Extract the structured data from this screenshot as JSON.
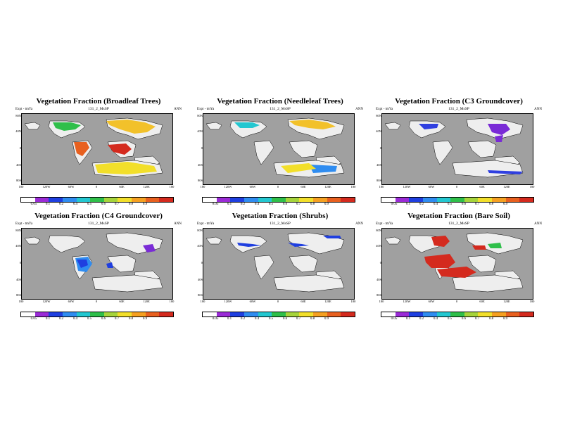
{
  "panels": [
    {
      "title": "Vegetation Fraction (Broadleaf Trees)",
      "expt": "Expt - tmYa",
      "run": "131_2_MsSP",
      "season": "ANN",
      "ylabels": [
        "80N",
        "40N",
        "0",
        "40S",
        "80S"
      ],
      "xlabels": [
        "180",
        "120W",
        "60W",
        "0",
        "60E",
        "120E",
        "180"
      ],
      "ticks": [
        "0.05",
        "0.1",
        "0.2",
        "0.4",
        "0.5",
        "0.6",
        "0.7",
        "0.8",
        "0.9"
      ]
    },
    {
      "title": "Vegetation Fraction (Needleleaf Trees)",
      "expt": "Expt - tmYa",
      "run": "131_2_MsSP",
      "season": "ANN",
      "ylabels": [
        "80N",
        "40N",
        "0",
        "40S",
        "80S"
      ],
      "xlabels": [
        "180",
        "120W",
        "60W",
        "0",
        "60E",
        "120E",
        "180"
      ],
      "ticks": [
        "0.05",
        "0.1",
        "0.2",
        "0.4",
        "0.5",
        "0.6",
        "0.7",
        "0.8",
        "0.9"
      ]
    },
    {
      "title": "Vegetation Fraction (C3 Groundcover)",
      "expt": "Expt - tmYa",
      "run": "131_2_MsSP",
      "season": "ANN",
      "ylabels": [
        "80N",
        "40N",
        "0",
        "40S",
        "80S"
      ],
      "xlabels": [
        "180",
        "120W",
        "60W",
        "0",
        "60E",
        "120E",
        "180"
      ],
      "ticks": [
        "0.05",
        "0.1",
        "0.2",
        "0.4",
        "0.5",
        "0.6",
        "0.7",
        "0.8",
        "0.9"
      ]
    },
    {
      "title": "Vegetation Fraction (C4 Groundcover)",
      "expt": "Expt - tmYa",
      "run": "131_2_MsSP",
      "season": "ANN",
      "ylabels": [
        "80N",
        "40N",
        "0",
        "40S",
        "80S"
      ],
      "xlabels": [
        "180",
        "120W",
        "60W",
        "0",
        "60E",
        "120E",
        "180"
      ],
      "ticks": [
        "0.05",
        "0.1",
        "0.2",
        "0.4",
        "0.5",
        "0.6",
        "0.7",
        "0.8",
        "0.9"
      ]
    },
    {
      "title": "Vegetation Fraction (Shrubs)",
      "expt": "Expt - tmYa",
      "run": "131_2_MsSP",
      "season": "ANN",
      "ylabels": [
        "80N",
        "40N",
        "0",
        "40S",
        "80S"
      ],
      "xlabels": [
        "180",
        "120W",
        "60W",
        "0",
        "60E",
        "120E",
        "180"
      ],
      "ticks": [
        "0.05",
        "0.1",
        "0.2",
        "0.4",
        "0.5",
        "0.6",
        "0.7",
        "0.8",
        "0.9"
      ]
    },
    {
      "title": "Vegetation Fraction (Bare Soil)",
      "expt": "Expt - tmYa",
      "run": "131_2_MsSP",
      "season": "ANN",
      "ylabels": [
        "80N",
        "40N",
        "0",
        "40S",
        "80S"
      ],
      "xlabels": [
        "180",
        "120W",
        "60W",
        "0",
        "60E",
        "120E",
        "180"
      ],
      "ticks": [
        "0.05",
        "0.1",
        "0.2",
        "0.4",
        "0.5",
        "0.6",
        "0.7",
        "0.8",
        "0.9"
      ]
    }
  ],
  "colorbar": [
    "#ffffff",
    "#9a2bd6",
    "#1f3fe0",
    "#2f8cf0",
    "#23c7d0",
    "#2fbf4a",
    "#a6d43b",
    "#f2df2a",
    "#f5a021",
    "#e8601f",
    "#d42a1e"
  ],
  "colors": {
    "ocean": "#a0a0a0",
    "land": "#eeeeee"
  }
}
